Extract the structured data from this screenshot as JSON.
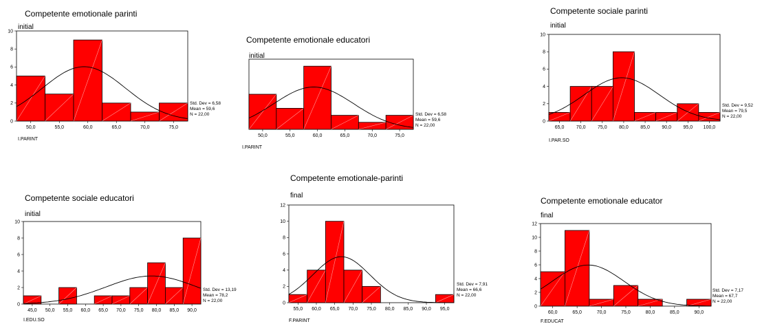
{
  "chart_data": [
    {
      "type": "bar",
      "title": "Competente emotionale parinti",
      "subtitle": "initial",
      "xlabel": "I.PARINT",
      "x_ticks": [
        "50,0",
        "55,0",
        "60,0",
        "65,0",
        "70,0",
        "75,0"
      ],
      "y_ticks": [
        "0",
        "2",
        "4",
        "6",
        "8",
        "10"
      ],
      "ylim": [
        0,
        10
      ],
      "values": [
        5,
        3,
        9,
        2,
        1,
        2
      ],
      "stats": [
        "Std. Dev = 6,58",
        "Mean = 59,6",
        "N = 22,00"
      ],
      "normal_curve": true
    },
    {
      "type": "bar",
      "title": "Competente emotionale educatori",
      "subtitle": "initial",
      "xlabel": "I.PARINT",
      "x_ticks": [
        "50,0",
        "55,0",
        "60,0",
        "65,0",
        "70,0",
        "75,0"
      ],
      "y_ticks": [],
      "ylim": [
        0,
        10
      ],
      "values": [
        5,
        3,
        9,
        2,
        1,
        2
      ],
      "stats": [
        "Std. Dev = 6,58",
        "Mean = 59,6",
        "N = 22,00"
      ],
      "normal_curve": true
    },
    {
      "type": "bar",
      "title": "Competente sociale parinti",
      "subtitle": "initial",
      "xlabel": "I.PAR.SO",
      "x_ticks": [
        "65,0",
        "70,0",
        "75,0",
        "80,0",
        "85,0",
        "90,0",
        "95,0",
        "100,0"
      ],
      "y_ticks": [
        "0",
        "2",
        "4",
        "6",
        "8",
        "10"
      ],
      "ylim": [
        0,
        10
      ],
      "values": [
        1,
        4,
        4,
        8,
        1,
        1,
        2,
        1
      ],
      "stats": [
        "Std. Dev = 9,52",
        "Mean = 79,5",
        "N = 22,00"
      ],
      "normal_curve": true
    },
    {
      "type": "bar",
      "title": "Competente sociale educatori",
      "subtitle": "initial",
      "xlabel": "I.EDU.SO",
      "x_ticks": [
        "45,0",
        "50,0",
        "55,0",
        "60,0",
        "65,0",
        "70,0",
        "75,0",
        "80,0",
        "85,0",
        "90,0"
      ],
      "y_ticks": [
        "0",
        "2",
        "4",
        "6",
        "8",
        "10"
      ],
      "ylim": [
        0,
        10
      ],
      "values": [
        1,
        0,
        2,
        0,
        1,
        1,
        2,
        5,
        2,
        8
      ],
      "stats": [
        "Std. Dev = 13,19",
        "Mean = 78,2",
        "N = 22,00"
      ],
      "normal_curve": true
    },
    {
      "type": "bar",
      "title": "Competente emotionale-parinti",
      "subtitle": "final",
      "xlabel": "F.PARINT",
      "x_ticks": [
        "55,0",
        "60,0",
        "65,0",
        "70,0",
        "75,0",
        "80,0",
        "85,0",
        "90,0",
        "95,0"
      ],
      "y_ticks": [
        "0",
        "2",
        "4",
        "6",
        "8",
        "10",
        "12"
      ],
      "ylim": [
        0,
        12
      ],
      "values": [
        1,
        4,
        10,
        4,
        2,
        0,
        0,
        0,
        1
      ],
      "stats": [
        "Std. Dev = 7,91",
        "Mean = 66,6",
        "N = 22,00"
      ],
      "normal_curve": true
    },
    {
      "type": "bar",
      "title": "Competente emotionale educator",
      "subtitle": "final",
      "xlabel": "F.EDUCAT",
      "x_ticks": [
        "60,0",
        "65,0",
        "70,0",
        "75,0",
        "80,0",
        "85,0",
        "90,0"
      ],
      "y_ticks": [
        "0",
        "2",
        "4",
        "6",
        "8",
        "10",
        "12"
      ],
      "ylim": [
        0,
        12
      ],
      "values": [
        5,
        11,
        1,
        3,
        1,
        0,
        1
      ],
      "stats": [
        "Std. Dev = 7,17",
        "Mean = 67,7",
        "N = 22,00"
      ],
      "normal_curve": true
    }
  ],
  "colors": {
    "bar_fill": "#ff0000",
    "bar_stroke": "#000000",
    "curve": "#000000"
  }
}
